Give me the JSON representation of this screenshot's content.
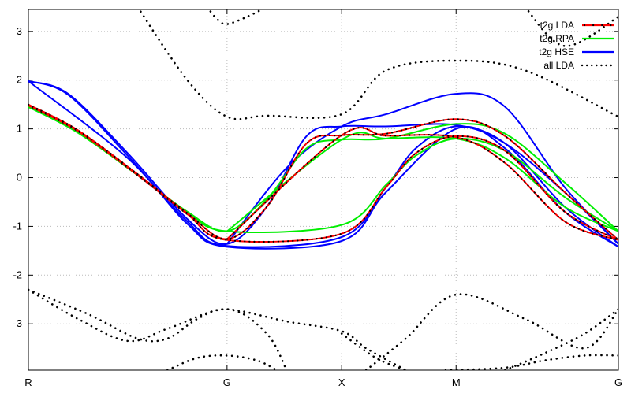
{
  "chart_data": {
    "type": "line",
    "title": "",
    "xlabel": "",
    "ylabel": "",
    "ylim": [
      -3.95,
      3.45
    ],
    "grid": true,
    "legend_position": "top-right",
    "x_ticks": [
      {
        "label": "R",
        "x": 0.0
      },
      {
        "label": "G",
        "x": 1.0
      },
      {
        "label": "X",
        "x": 1.577
      },
      {
        "label": "M",
        "x": 2.153
      },
      {
        "label": "G",
        "x": 2.97
      }
    ],
    "y_ticks": [
      {
        "label": "-3",
        "y": -3
      },
      {
        "label": "-2",
        "y": -2
      },
      {
        "label": "-1",
        "y": -1
      },
      {
        "label": "0",
        "y": 0
      },
      {
        "label": "1",
        "y": 1
      },
      {
        "label": "2",
        "y": 2
      },
      {
        "label": "3",
        "y": 3
      }
    ],
    "legend": [
      {
        "label": "t2g LDA",
        "color": "#ff0000",
        "style": "line-with-points"
      },
      {
        "label": "t2g RPA",
        "color": "#00ee00",
        "style": "line"
      },
      {
        "label": "t2g HSE",
        "color": "#0000ff",
        "style": "line"
      },
      {
        "label": "all LDA",
        "color": "#000000",
        "style": "dots"
      }
    ],
    "series": [
      {
        "name": "t2g LDA",
        "color": "#ff0000",
        "lines": [
          [
            [
              0,
              1.48
            ],
            [
              0.25,
              0.95
            ],
            [
              0.55,
              0.05
            ],
            [
              0.8,
              -0.75
            ],
            [
              1.0,
              -1.28
            ],
            [
              1.577,
              -1.15
            ],
            [
              1.8,
              -0.2
            ],
            [
              1.95,
              0.5
            ],
            [
              2.153,
              0.85
            ],
            [
              2.4,
              0.55
            ],
            [
              2.7,
              -0.7
            ],
            [
              2.97,
              -1.28
            ]
          ],
          [
            [
              0,
              1.5
            ],
            [
              0.25,
              0.97
            ],
            [
              0.55,
              0.07
            ],
            [
              0.8,
              -0.73
            ],
            [
              1.0,
              -1.26
            ],
            [
              1.2,
              -0.6
            ],
            [
              1.4,
              0.7
            ],
            [
              1.577,
              0.87
            ],
            [
              1.8,
              0.9
            ],
            [
              2.153,
              1.2
            ],
            [
              2.4,
              0.85
            ],
            [
              2.7,
              -0.3
            ],
            [
              2.97,
              -1.28
            ]
          ],
          [
            [
              1.0,
              -1.26
            ],
            [
              1.577,
              0.87
            ],
            [
              1.8,
              0.86
            ],
            [
              2.153,
              0.83
            ],
            [
              2.4,
              0.3
            ],
            [
              2.7,
              -0.9
            ],
            [
              2.97,
              -1.28
            ]
          ]
        ]
      },
      {
        "name": "t2g RPA",
        "color": "#00ee00",
        "lines": [
          [
            [
              0,
              1.45
            ],
            [
              0.25,
              0.92
            ],
            [
              0.55,
              0.05
            ],
            [
              0.8,
              -0.7
            ],
            [
              1.0,
              -1.1
            ],
            [
              1.577,
              -0.97
            ],
            [
              1.8,
              -0.15
            ],
            [
              1.95,
              0.45
            ],
            [
              2.153,
              0.8
            ],
            [
              2.4,
              0.55
            ],
            [
              2.7,
              -0.4
            ],
            [
              2.97,
              -1.1
            ]
          ],
          [
            [
              0,
              1.45
            ],
            [
              0.25,
              0.92
            ],
            [
              0.55,
              0.05
            ],
            [
              0.8,
              -0.7
            ],
            [
              1.0,
              -1.1
            ],
            [
              1.2,
              -0.45
            ],
            [
              1.4,
              0.6
            ],
            [
              1.577,
              0.78
            ],
            [
              1.8,
              0.8
            ],
            [
              2.153,
              1.1
            ],
            [
              2.4,
              0.9
            ],
            [
              2.7,
              -0.1
            ],
            [
              2.97,
              -1.1
            ]
          ],
          [
            [
              1.0,
              -1.1
            ],
            [
              1.577,
              0.78
            ],
            [
              1.8,
              0.8
            ],
            [
              2.153,
              0.8
            ],
            [
              2.4,
              0.4
            ],
            [
              2.7,
              -0.6
            ],
            [
              2.97,
              -1.1
            ]
          ]
        ]
      },
      {
        "name": "t2g HSE",
        "color": "#0000ff",
        "lines": [
          [
            [
              0,
              1.98
            ],
            [
              0.2,
              1.7
            ],
            [
              0.5,
              0.45
            ],
            [
              0.8,
              -0.9
            ],
            [
              1.0,
              -1.4
            ],
            [
              1.577,
              -1.22
            ],
            [
              1.8,
              -0.2
            ],
            [
              1.95,
              0.6
            ],
            [
              2.153,
              1.05
            ],
            [
              2.4,
              0.7
            ],
            [
              2.7,
              -0.6
            ],
            [
              2.97,
              -1.42
            ]
          ],
          [
            [
              0,
              1.98
            ],
            [
              0.2,
              1.72
            ],
            [
              0.5,
              0.5
            ],
            [
              0.8,
              -0.85
            ],
            [
              1.0,
              -1.36
            ],
            [
              1.2,
              -0.6
            ],
            [
              1.4,
              0.85
            ],
            [
              1.577,
              1.05
            ],
            [
              1.8,
              1.05
            ],
            [
              2.153,
              1.08
            ],
            [
              2.4,
              0.7
            ],
            [
              2.7,
              -0.3
            ],
            [
              2.97,
              -1.36
            ]
          ],
          [
            [
              1.0,
              -1.36
            ],
            [
              1.3,
              0.2
            ],
            [
              1.577,
              1.05
            ],
            [
              1.8,
              1.3
            ],
            [
              2.153,
              1.72
            ],
            [
              2.4,
              1.45
            ],
            [
              2.7,
              -0.2
            ],
            [
              2.97,
              -1.36
            ]
          ],
          [
            [
              0,
              1.98
            ],
            [
              0.5,
              0.4
            ],
            [
              0.8,
              -0.95
            ],
            [
              1.0,
              -1.42
            ],
            [
              1.577,
              -1.3
            ],
            [
              1.8,
              -0.3
            ],
            [
              2.153,
              1.0
            ],
            [
              2.4,
              0.6
            ],
            [
              2.7,
              -0.7
            ],
            [
              2.97,
              -1.42
            ]
          ]
        ]
      },
      {
        "name": "all LDA",
        "color": "#000000",
        "lines": [
          [
            [
              0.55,
              3.5
            ],
            [
              0.8,
              2.0
            ],
            [
              1.0,
              1.25
            ],
            [
              1.2,
              1.27
            ],
            [
              1.577,
              1.3
            ],
            [
              1.8,
              2.2
            ],
            [
              2.153,
              2.4
            ],
            [
              2.5,
              2.2
            ],
            [
              2.97,
              1.25
            ]
          ],
          [
            [
              0.9,
              3.5
            ],
            [
              0.95,
              3.25
            ],
            [
              1.0,
              3.15
            ],
            [
              1.1,
              3.3
            ],
            [
              1.2,
              3.5
            ]
          ],
          [
            [
              2.5,
              3.5
            ],
            [
              2.7,
              2.7
            ],
            [
              2.97,
              3.3
            ]
          ],
          [
            [
              0,
              -2.3
            ],
            [
              0.3,
              -2.8
            ],
            [
              0.55,
              -3.3
            ],
            [
              0.7,
              -3.3
            ],
            [
              0.85,
              -2.9
            ],
            [
              1.0,
              -2.7
            ],
            [
              1.3,
              -2.95
            ],
            [
              1.577,
              -3.15
            ],
            [
              1.7,
              -3.5
            ],
            [
              1.9,
              -3.95
            ]
          ],
          [
            [
              0,
              -2.3
            ],
            [
              0.25,
              -2.9
            ],
            [
              0.5,
              -3.35
            ],
            [
              0.7,
              -3.1
            ],
            [
              1.0,
              -2.7
            ],
            [
              1.2,
              -3.2
            ],
            [
              1.3,
              -3.95
            ]
          ],
          [
            [
              0.7,
              -3.95
            ],
            [
              0.85,
              -3.7
            ],
            [
              1.0,
              -3.65
            ],
            [
              1.15,
              -3.75
            ],
            [
              1.25,
              -3.95
            ]
          ],
          [
            [
              1.7,
              -3.95
            ],
            [
              1.9,
              -3.3
            ],
            [
              2.153,
              -2.4
            ],
            [
              2.5,
              -2.9
            ],
            [
              2.8,
              -3.5
            ],
            [
              2.97,
              -2.7
            ]
          ],
          [
            [
              1.577,
              -3.2
            ],
            [
              1.75,
              -3.7
            ],
            [
              1.9,
              -3.95
            ]
          ],
          [
            [
              2.1,
              -3.95
            ],
            [
              2.4,
              -3.9
            ],
            [
              2.6,
              -3.75
            ],
            [
              2.8,
              -3.65
            ],
            [
              2.97,
              -3.65
            ]
          ],
          [
            [
              2.4,
              -3.95
            ],
            [
              2.6,
              -3.6
            ],
            [
              2.8,
              -3.2
            ],
            [
              2.97,
              -2.7
            ]
          ]
        ]
      }
    ]
  }
}
